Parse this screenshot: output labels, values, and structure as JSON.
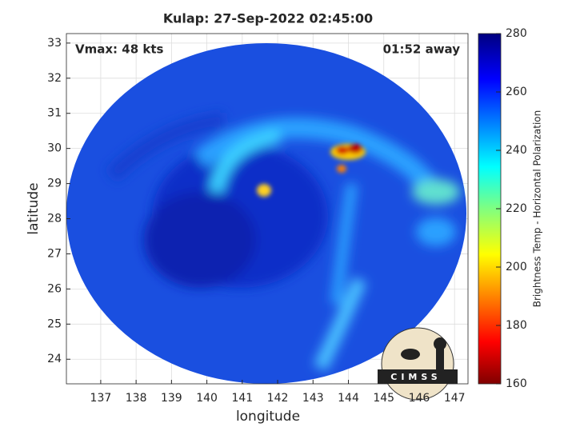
{
  "chart_data": {
    "type": "heatmap",
    "title": "Kulap: 27-Sep-2022 02:45:00",
    "xlabel": "longitude",
    "ylabel": "latitude",
    "xlim": [
      136.03,
      147.38
    ],
    "ylim": [
      23.3,
      33.27
    ],
    "xticks": [
      137,
      138,
      139,
      140,
      141,
      142,
      143,
      144,
      145,
      146,
      147
    ],
    "yticks": [
      24,
      25,
      26,
      27,
      28,
      29,
      30,
      31,
      32,
      33
    ],
    "grid": true,
    "annotations": [
      "Vmax: 48 kts",
      "01:52 away"
    ],
    "colorbar": {
      "label": "Brightness Temp - Horizontal Polarization",
      "lim": [
        160,
        280
      ],
      "ticks": [
        160,
        180,
        200,
        220,
        240,
        260,
        280
      ],
      "colormap": "jet"
    },
    "logo": "CIMSS"
  }
}
